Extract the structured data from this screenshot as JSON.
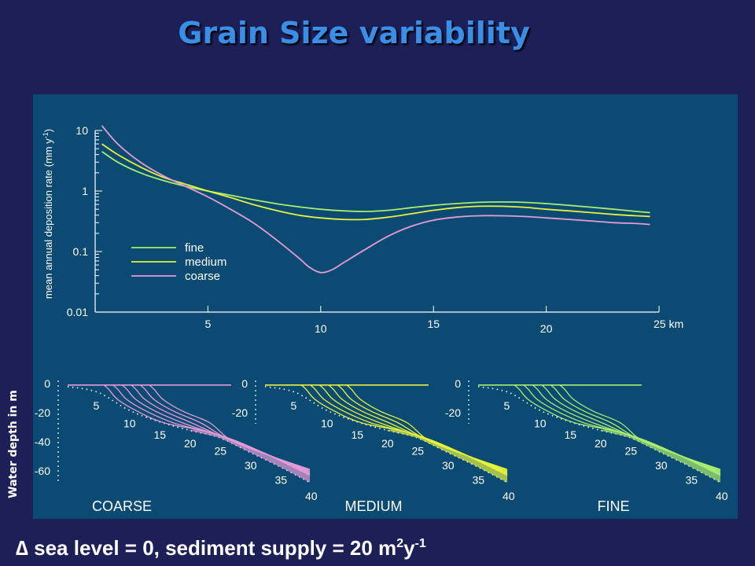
{
  "title": "Grain Size variability",
  "footer": {
    "prefix": "∆ sea level = 0, sediment supply = 20 m",
    "sup1": "2",
    "mid": "y",
    "sup2": "-1"
  },
  "water_depth_label": "Water depth in m",
  "colors": {
    "fine": "#a9ec6f",
    "medium": "#e6f23c",
    "coarse": "#e49bd8",
    "ink": "#ffffff",
    "panel": "#0b4b73",
    "background": "#1d1f57",
    "title": "#3a8ee6"
  },
  "chart_data": [
    {
      "type": "line",
      "ylabel_main": "mean annual deposition rate (mm y",
      "ylabel_sup": "-1",
      "ylabel_close": ")",
      "xlabel_unit": "km",
      "yscale": "log",
      "ylim": [
        0.01,
        10
      ],
      "xlim": [
        0,
        25
      ],
      "x_ticks": [
        5,
        10,
        15,
        20,
        25
      ],
      "x_tick_labels": [
        "5",
        "10",
        "15",
        "20",
        "25 km"
      ],
      "y_ticks": [
        0.01,
        0.1,
        1,
        10
      ],
      "y_tick_labels": [
        "0.01",
        "0.1",
        "1",
        "10"
      ],
      "legend": [
        "fine",
        "medium",
        "coarse"
      ],
      "series": [
        {
          "name": "fine",
          "x": [
            0.3,
            1,
            2,
            3,
            4,
            5,
            6,
            7,
            8,
            9,
            10,
            11,
            12,
            13,
            14,
            15,
            16,
            17,
            18,
            19,
            20,
            21,
            22,
            23,
            24,
            24.6
          ],
          "y": [
            4.5,
            3.0,
            2.0,
            1.5,
            1.2,
            1.0,
            0.85,
            0.72,
            0.62,
            0.55,
            0.5,
            0.47,
            0.46,
            0.48,
            0.53,
            0.58,
            0.62,
            0.65,
            0.66,
            0.65,
            0.62,
            0.58,
            0.54,
            0.5,
            0.46,
            0.44
          ]
        },
        {
          "name": "medium",
          "x": [
            0.3,
            1,
            2,
            3,
            4,
            5,
            6,
            7,
            8,
            9,
            10,
            11,
            12,
            13,
            14,
            15,
            16,
            17,
            18,
            19,
            20,
            21,
            22,
            23,
            24,
            24.6
          ],
          "y": [
            6.0,
            4.0,
            2.5,
            1.7,
            1.3,
            1.0,
            0.78,
            0.6,
            0.48,
            0.4,
            0.36,
            0.34,
            0.34,
            0.37,
            0.42,
            0.48,
            0.53,
            0.56,
            0.56,
            0.54,
            0.5,
            0.47,
            0.44,
            0.41,
            0.39,
            0.38
          ]
        },
        {
          "name": "coarse",
          "x": [
            0.3,
            1,
            2,
            3,
            4,
            5,
            6,
            7,
            8,
            9,
            9.5,
            10,
            10.5,
            11,
            12,
            13,
            14,
            15,
            16,
            17,
            18,
            19,
            20,
            21,
            22,
            23,
            24,
            24.6
          ],
          "y": [
            12.0,
            6.0,
            3.0,
            1.8,
            1.2,
            0.8,
            0.5,
            0.3,
            0.16,
            0.08,
            0.055,
            0.045,
            0.05,
            0.065,
            0.11,
            0.18,
            0.26,
            0.33,
            0.37,
            0.39,
            0.39,
            0.38,
            0.36,
            0.34,
            0.32,
            0.3,
            0.29,
            0.28
          ]
        }
      ]
    },
    {
      "type": "line",
      "name": "COARSE",
      "ylabel": "Water depth in m",
      "y_ticks": [
        0,
        -20,
        -40,
        -60
      ],
      "y_tick_labels": [
        "0",
        "-20",
        "-40",
        "-60"
      ],
      "ylim": [
        -75,
        5
      ],
      "distance_labels": [
        "5",
        "10",
        "15",
        "20",
        "25",
        "30",
        "35",
        "40"
      ],
      "series": [
        {
          "name": "initial bathymetry",
          "x": [
            0,
            5,
            10,
            15,
            20,
            25,
            30,
            35,
            40
          ],
          "y": [
            -2,
            -6,
            -18,
            -26,
            -32,
            -37,
            -47,
            -57,
            -68
          ]
        }
      ]
    },
    {
      "type": "line",
      "name": "MEDIUM",
      "y_ticks": [
        0,
        -20
      ],
      "y_tick_labels": [
        "0",
        "-20"
      ],
      "ylim": [
        -75,
        5
      ],
      "distance_labels": [
        "5",
        "10",
        "15",
        "20",
        "25",
        "30",
        "35",
        "40"
      ],
      "series": [
        {
          "name": "initial bathymetry",
          "x": [
            0,
            5,
            10,
            15,
            20,
            25,
            30,
            35,
            40
          ],
          "y": [
            -2,
            -6,
            -18,
            -26,
            -32,
            -37,
            -47,
            -57,
            -68
          ]
        }
      ]
    },
    {
      "type": "line",
      "name": "FINE",
      "y_ticks": [
        0,
        -20
      ],
      "y_tick_labels": [
        "0",
        "-20"
      ],
      "ylim": [
        -75,
        5
      ],
      "distance_labels": [
        "5",
        "10",
        "15",
        "20",
        "25",
        "30",
        "35",
        "40"
      ],
      "series": [
        {
          "name": "initial bathymetry",
          "x": [
            0,
            5,
            10,
            15,
            20,
            25,
            30,
            35,
            40
          ],
          "y": [
            -2,
            -6,
            -18,
            -26,
            -32,
            -37,
            -47,
            -57,
            -68
          ]
        }
      ]
    }
  ]
}
